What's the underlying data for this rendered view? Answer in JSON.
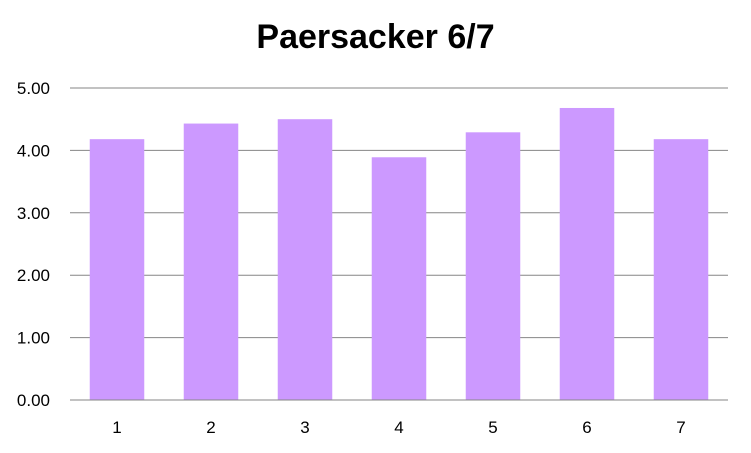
{
  "chart_data": {
    "type": "bar",
    "title": "Paersacker 6/7",
    "xlabel": "",
    "ylabel": "",
    "categories": [
      "1",
      "2",
      "3",
      "4",
      "5",
      "6",
      "7"
    ],
    "values": [
      4.18,
      4.43,
      4.5,
      3.89,
      4.29,
      4.68,
      4.18
    ],
    "ylim": [
      0,
      5
    ],
    "yticks": [
      "0.00",
      "1.00",
      "2.00",
      "3.00",
      "4.00",
      "5.00"
    ],
    "grid": true,
    "legend": "none",
    "bar_color": "#cc99ff",
    "gridline_color": "#868686"
  }
}
